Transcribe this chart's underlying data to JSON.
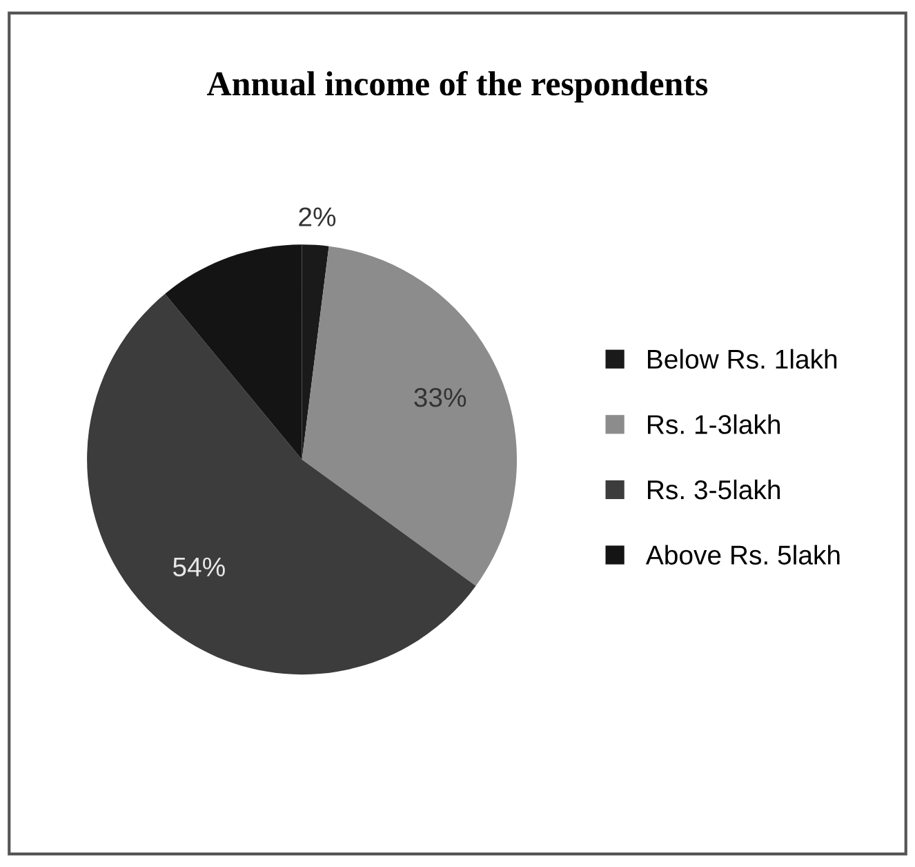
{
  "chart_data": {
    "type": "pie",
    "title": "Annual income of the respondents",
    "categories": [
      "Below Rs. 1lakh",
      "Rs. 1-3lakh",
      "Rs. 3-5lakh",
      "Above Rs. 5lakh"
    ],
    "values": [
      2,
      33,
      54,
      11
    ],
    "colors": [
      "#1a1a1a",
      "#8c8c8c",
      "#3c3c3c",
      "#141414"
    ],
    "value_labels": [
      "2%",
      "33%",
      "54%",
      null
    ],
    "legend": "right"
  }
}
